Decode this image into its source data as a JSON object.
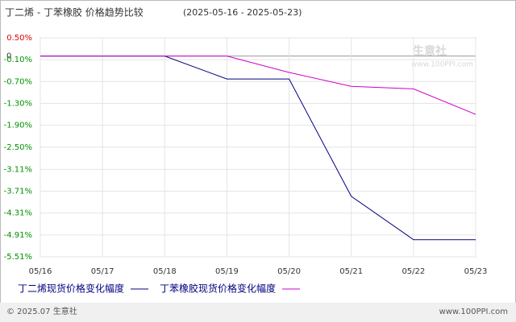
{
  "chart_data": {
    "type": "line",
    "title": "丁二烯 - 丁苯橡胶 价格趋势比较",
    "subtitle": "(2025-05-16 - 2025-05-23)",
    "categories": [
      "05/16",
      "05/17",
      "05/18",
      "05/19",
      "05/20",
      "05/21",
      "05/22",
      "05/23"
    ],
    "series": [
      {
        "name": "丁二烯现货价格变化幅度",
        "color": "#000080",
        "values": [
          0,
          0,
          0,
          -0.63,
          -0.63,
          -3.85,
          -5.04,
          -5.04
        ]
      },
      {
        "name": "丁苯橡胶现货价格变化幅度",
        "color": "#cc00cc",
        "values": [
          0,
          0,
          0,
          0,
          -0.45,
          -0.83,
          -0.9,
          -1.6
        ]
      }
    ],
    "ylim": [
      0.5,
      -5.51
    ],
    "yticks": [
      {
        "value": 0.5,
        "label": "0.50%"
      },
      0,
      {
        "value": -0.1,
        "label": "-0.10%"
      },
      {
        "value": -0.7,
        "label": "-0.70%"
      },
      {
        "value": -1.3,
        "label": "-1.30%"
      },
      {
        "value": -1.9,
        "label": "-1.90%"
      },
      {
        "value": -2.5,
        "label": "-2.50%"
      },
      {
        "value": -3.11,
        "label": "-3.11%"
      },
      {
        "value": -3.71,
        "label": "-3.71%"
      },
      {
        "value": -4.31,
        "label": "-4.31%"
      },
      {
        "value": -4.91,
        "label": "-4.91%"
      },
      {
        "value": -5.51,
        "label": "-5.51%"
      }
    ],
    "grid": true,
    "watermark": {
      "name": "生意社",
      "url": "www.100PPI.com"
    },
    "footer": {
      "left": "© 2025.07 生意社",
      "right": "www.100PPI.com"
    }
  }
}
